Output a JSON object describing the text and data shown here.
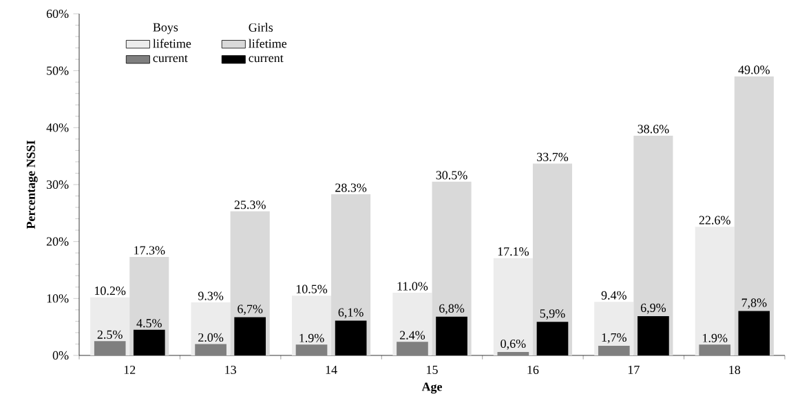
{
  "chart_data": {
    "type": "bar",
    "xlabel": "Age",
    "ylabel": "Percentage NSSI",
    "categories": [
      "12",
      "13",
      "14",
      "15",
      "16",
      "17",
      "18"
    ],
    "series": [
      {
        "name": "lifetime",
        "color": "#ececec",
        "values": [
          10.2,
          9.3,
          10.5,
          11.0,
          17.1,
          9.4,
          22.6
        ],
        "value_labels": [
          "10.2%",
          "9.3%",
          "10.5%",
          "11.0%",
          "17.1%",
          "9.4%",
          "22.6%"
        ]
      },
      {
        "name": "lifetime",
        "color": "#d9d9d9",
        "values": [
          17.3,
          25.3,
          28.3,
          30.5,
          33.7,
          38.6,
          49.0
        ],
        "value_labels": [
          "17.3%",
          "25.3%",
          "28.3%",
          "30.5%",
          "33.7%",
          "38.6%",
          "49.0%"
        ]
      },
      {
        "name": "current",
        "color": "#7f7f7f",
        "values": [
          2.5,
          2.0,
          1.9,
          2.4,
          0.6,
          1.7,
          1.9
        ],
        "value_labels": [
          "2.5%",
          "2.0%",
          "1.9%",
          "2.4%",
          "0,6%",
          "1,7%",
          "1.9%"
        ]
      },
      {
        "name": "current",
        "color": "#000000",
        "values": [
          4.5,
          6.7,
          6.1,
          6.8,
          5.9,
          6.9,
          7.8
        ],
        "value_labels": [
          "4.5%",
          "6,7%",
          "6,1%",
          "6,8%",
          "5,9%",
          "6,9%",
          "7,8%"
        ]
      }
    ],
    "annotations": [
      "Boys",
      "Girls"
    ],
    "ylim": [
      0,
      60
    ],
    "yticks": [
      {
        "value": 0,
        "label": "0%"
      },
      {
        "value": 10,
        "label": "10%"
      },
      {
        "value": 20,
        "label": "20%"
      },
      {
        "value": 30,
        "label": "30%"
      },
      {
        "value": 40,
        "label": "40%"
      },
      {
        "value": 50,
        "label": "50%"
      },
      {
        "value": 60,
        "label": "60%"
      }
    ],
    "legend": "top left",
    "grid": false
  }
}
